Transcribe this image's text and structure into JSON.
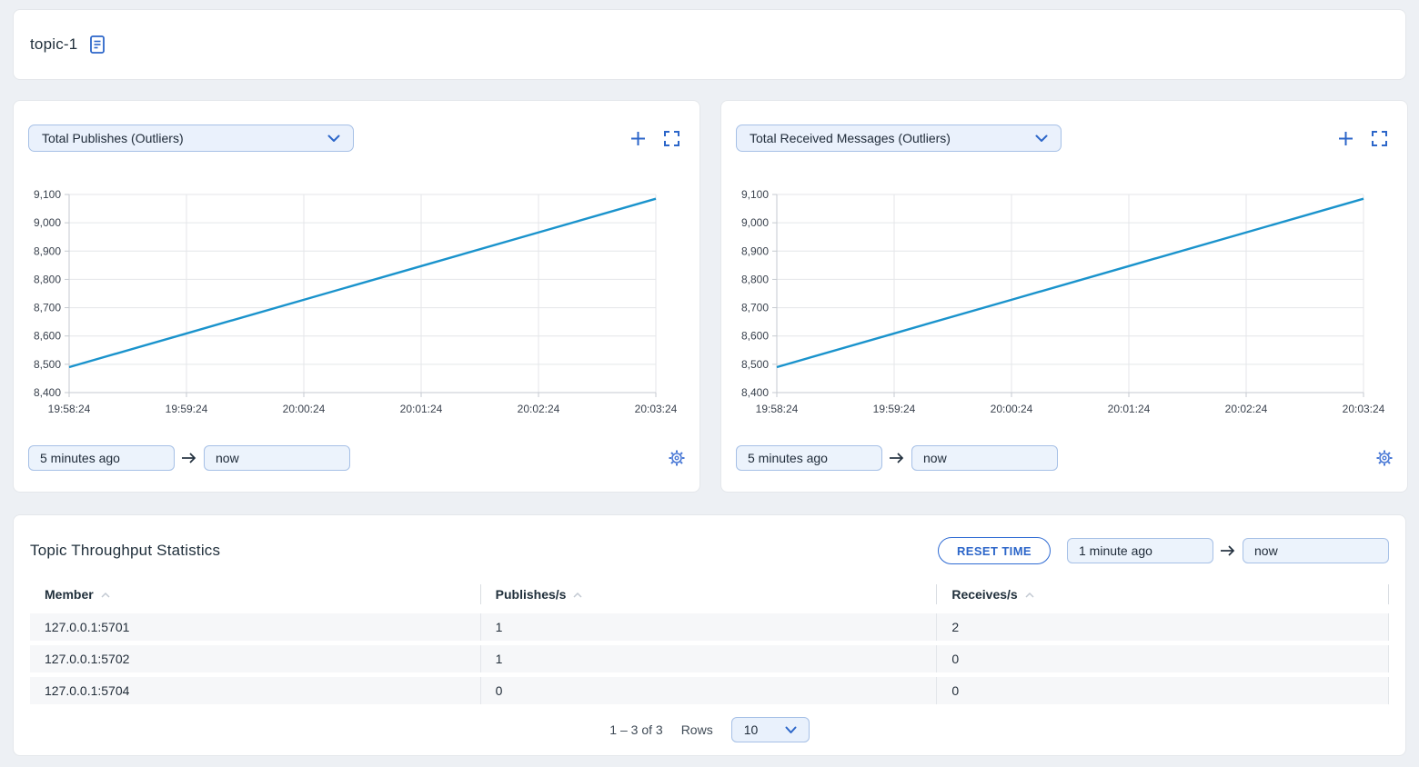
{
  "header": {
    "title": "topic-1",
    "doc_icon": "document-icon"
  },
  "chart_panels": [
    {
      "metric_select": "Total Publishes (Outliers)",
      "time_from": "5 minutes ago",
      "time_to": "now"
    },
    {
      "metric_select": "Total Received Messages (Outliers)",
      "time_from": "5 minutes ago",
      "time_to": "now"
    }
  ],
  "chart_data": [
    {
      "type": "line",
      "title": "Total Publishes (Outliers)",
      "x": [
        "19:58:24",
        "19:59:24",
        "20:00:24",
        "20:01:24",
        "20:02:24",
        "20:03:24"
      ],
      "values": [
        8490,
        8609,
        8728,
        8847,
        8966,
        9085
      ],
      "ylim": [
        8400,
        9100
      ],
      "y_tick_step": 100,
      "line_color": "#1a93cc",
      "grid": true,
      "legend": "none"
    },
    {
      "type": "line",
      "title": "Total Received Messages (Outliers)",
      "x": [
        "19:58:24",
        "19:59:24",
        "20:00:24",
        "20:01:24",
        "20:02:24",
        "20:03:24"
      ],
      "values": [
        8490,
        8609,
        8728,
        8847,
        8966,
        9085
      ],
      "ylim": [
        8400,
        9100
      ],
      "y_tick_step": 100,
      "line_color": "#1a93cc",
      "grid": true,
      "legend": "none"
    }
  ],
  "stats": {
    "title": "Topic Throughput Statistics",
    "reset_button": "RESET TIME",
    "time_from": "1 minute ago",
    "time_to": "now",
    "columns": [
      "Member",
      "Publishes/s",
      "Receives/s"
    ],
    "rows": [
      {
        "member": "127.0.0.1:5701",
        "publishes": "1",
        "receives": "2"
      },
      {
        "member": "127.0.0.1:5702",
        "publishes": "1",
        "receives": "0"
      },
      {
        "member": "127.0.0.1:5704",
        "publishes": "0",
        "receives": "0"
      }
    ],
    "pagination": {
      "range": "1 – 3 of 3",
      "rows_label": "Rows",
      "rows_per_page": "10"
    }
  },
  "colors": {
    "accent_blue": "#2c66c9",
    "chart_line": "#1a93cc",
    "input_bg": "#ecf3fc",
    "input_border": "#a6c0e6",
    "page_bg": "#edf0f4",
    "row_bg": "#f6f7f9"
  }
}
